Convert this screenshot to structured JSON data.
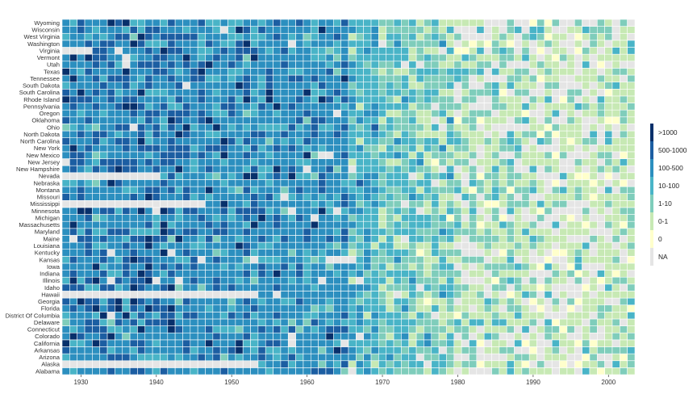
{
  "chart_data": {
    "type": "heatmap",
    "title": "",
    "xlabel": "",
    "ylabel": "",
    "x_range": [
      1928,
      2003
    ],
    "x_ticks": [
      1930,
      1940,
      1950,
      1960,
      1970,
      1980,
      1990,
      2000
    ],
    "y_categories": [
      "Alabama",
      "Alaska",
      "Arizona",
      "Arkansas",
      "California",
      "Colorado",
      "Connecticut",
      "Delaware",
      "District Of Columbia",
      "Florida",
      "Georgia",
      "Hawaii",
      "Idaho",
      "Illinois",
      "Indiana",
      "Iowa",
      "Kansas",
      "Kentucky",
      "Louisiana",
      "Maine",
      "Maryland",
      "Massachusetts",
      "Michigan",
      "Minnesota",
      "Mississippi",
      "Missouri",
      "Montana",
      "Nebraska",
      "Nevada",
      "New Hampshire",
      "New Jersey",
      "New Mexico",
      "New York",
      "North Carolina",
      "North Dakota",
      "Ohio",
      "Oklahoma",
      "Oregon",
      "Pennsylvania",
      "Rhode Island",
      "South Carolina",
      "South Dakota",
      "Tennessee",
      "Texas",
      "Utah",
      "Vermont",
      "Virginia",
      "Washington",
      "West Virginia",
      "Wisconsin",
      "Wyoming"
    ],
    "legend": {
      "position": "right",
      "categories": [
        ">1000",
        "500-1000",
        "100-500",
        "10-100",
        "1-10",
        "0-1",
        "0",
        "NA"
      ],
      "colors": [
        "#08306b",
        "#1c5ea2",
        "#2c8fbf",
        "#49b4c7",
        "#7fcdbb",
        "#c7e9b4",
        "#ffffcc",
        "#e5e5e5"
      ]
    },
    "na_periods": [
      {
        "state": "Alaska",
        "from": 1928,
        "to": 1953
      },
      {
        "state": "Hawaii",
        "from": 1928,
        "to": 1953
      },
      {
        "state": "Mississippi",
        "from": 1928,
        "to": 1946
      },
      {
        "state": "Nevada",
        "from": 1928,
        "to": 1940
      },
      {
        "state": "Virginia",
        "from": 1928,
        "to": 1931
      },
      {
        "state": "Kansas",
        "from": 1963,
        "to": 1966
      },
      {
        "state": "New Mexico",
        "from": 1962,
        "to": 1963
      }
    ],
    "trend": "Counts are mostly 100-500 and above before the mid-1960s; after about 1966-1970 values fall to 10-100 and 1-10, and after about 1980 cells are mainly 0-1, 0 or NA.",
    "grid": false
  }
}
